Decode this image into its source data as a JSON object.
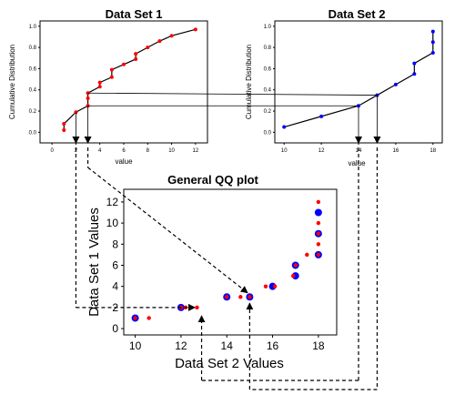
{
  "chart_data": [
    {
      "type": "line",
      "title": "Data Set 1",
      "xlabel": "value",
      "ylabel": "Cumulative Distribution",
      "xlim": [
        -1,
        13
      ],
      "ylim": [
        -0.1,
        1.05
      ],
      "xticks": [
        "0",
        "2",
        "4",
        "6",
        "8",
        "10",
        "12"
      ],
      "yticks": [
        "0.0",
        "0.2",
        "0.4",
        "0.6",
        "0.8",
        "1.0"
      ],
      "color": "#ff0000",
      "x": [
        1,
        1,
        2,
        3,
        3,
        3,
        4,
        4,
        5,
        5,
        6,
        7,
        7,
        8,
        9,
        10,
        12
      ],
      "y": [
        0.02,
        0.08,
        0.19,
        0.25,
        0.32,
        0.37,
        0.43,
        0.47,
        0.52,
        0.59,
        0.64,
        0.69,
        0.74,
        0.8,
        0.86,
        0.91,
        0.97
      ]
    },
    {
      "type": "line",
      "title": "Data Set 2",
      "xlabel": "value",
      "ylabel": "Cumulative Distribution",
      "xlim": [
        9.5,
        18.5
      ],
      "ylim": [
        -0.1,
        1.05
      ],
      "xticks": [
        "10",
        "12",
        "14",
        "16",
        "18"
      ],
      "yticks": [
        "0.0",
        "0.2",
        "0.4",
        "0.6",
        "0.8",
        "1.0"
      ],
      "color": "#0000ff",
      "x": [
        10,
        12,
        14,
        15,
        16,
        17,
        17,
        18,
        18,
        18
      ],
      "y": [
        0.05,
        0.15,
        0.25,
        0.35,
        0.45,
        0.55,
        0.65,
        0.75,
        0.85,
        0.95
      ]
    },
    {
      "type": "scatter",
      "title": "General QQ plot",
      "xlabel": "Data Set 2 Values",
      "ylabel": "Data Set 1 Values",
      "xlim": [
        9.5,
        18.8
      ],
      "ylim": [
        -0.6,
        13.2
      ],
      "xticks": [
        "10",
        "12",
        "14",
        "16",
        "18"
      ],
      "yticks": [
        "0",
        "2",
        "4",
        "6",
        "8",
        "10",
        "12"
      ],
      "series": [
        {
          "color": "#0000ff",
          "marker": "large circle",
          "x": [
            10,
            12,
            14,
            15,
            16,
            17,
            17,
            18,
            18,
            18
          ],
          "y": [
            1,
            2,
            3,
            3,
            4,
            5,
            6,
            7,
            9,
            11
          ]
        },
        {
          "color": "#ff0000",
          "marker": "small circle",
          "x": [
            10,
            10.6,
            12,
            12.2,
            12.7,
            14,
            14.6,
            15,
            15.7,
            16.1,
            16.9,
            17,
            17.5,
            18,
            18,
            18,
            18,
            18
          ],
          "y": [
            1,
            1,
            2,
            2,
            2,
            3,
            3,
            3,
            4,
            4,
            5,
            6,
            7,
            7,
            8,
            9,
            10,
            12
          ]
        }
      ]
    }
  ]
}
